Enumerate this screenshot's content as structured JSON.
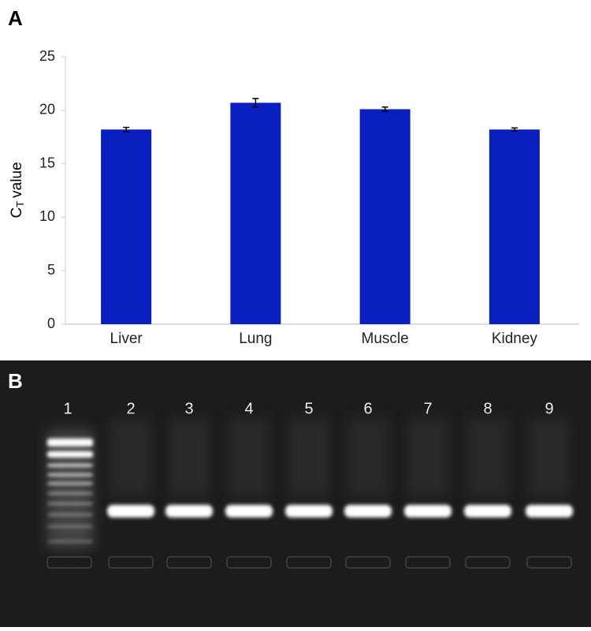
{
  "panel_labels": [
    "A",
    "B"
  ],
  "chart_data": {
    "type": "bar",
    "ylabel": [
      "C",
      "T",
      "value"
    ],
    "categories": [
      "Liver",
      "Lung",
      "Muscle",
      "Kidney"
    ],
    "values": [
      18.2,
      20.7,
      20.1,
      18.2
    ],
    "errors": [
      0.2,
      0.4,
      0.2,
      0.15
    ],
    "color": "#0a1fbf",
    "ylim": [
      0,
      25
    ],
    "yticks": [
      0,
      5,
      10,
      15,
      20,
      25
    ]
  },
  "gel": {
    "lanes": [
      "1",
      "2",
      "3",
      "4",
      "5",
      "6",
      "7",
      "8",
      "9"
    ]
  }
}
